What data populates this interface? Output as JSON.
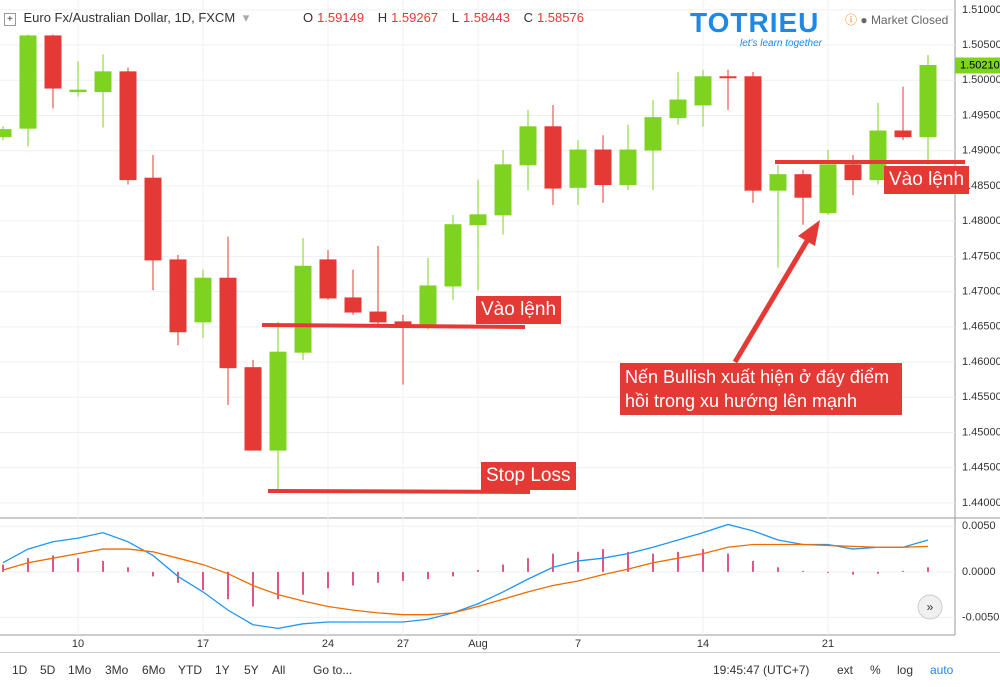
{
  "header": {
    "symbol": "Euro Fx/Australian Dollar, 1D, FXCM",
    "ohlc": [
      {
        "key": "O",
        "value": "1.59149"
      },
      {
        "key": "H",
        "value": "1.59267"
      },
      {
        "key": "L",
        "value": "1.58443"
      },
      {
        "key": "C",
        "value": "1.58576"
      }
    ],
    "status": "Market Closed"
  },
  "logo": {
    "name": "TOTRIEU",
    "tagline": "let's learn together"
  },
  "annotations": {
    "entry_1": "Vào lệnh",
    "entry_2": "Vào lệnh",
    "stop_loss": "Stop Loss",
    "note": "Nến Bullish xuất hiện ở đáy điểm hồi trong xu hướng lên mạnh"
  },
  "toolbar": {
    "ranges": [
      "1D",
      "5D",
      "1Mo",
      "3Mo",
      "6Mo",
      "YTD",
      "1Y",
      "5Y",
      "All"
    ],
    "goto": "Go to...",
    "time": "19:45:47 (UTC+7)",
    "options": [
      "ext",
      "%",
      "log",
      "auto"
    ]
  },
  "chart_data": [
    {
      "type": "candlestick",
      "up_color": "#7ed321",
      "down_color": "#e53935",
      "grid": true,
      "categories": [
        null,
        null,
        null,
        "10",
        null,
        null,
        null,
        null,
        "17",
        null,
        null,
        null,
        null,
        "24",
        null,
        null,
        "27",
        null,
        null,
        "Aug",
        null,
        null,
        null,
        "7",
        null,
        null,
        null,
        null,
        "14",
        null,
        null,
        null,
        null,
        "21",
        null,
        null,
        null,
        null
      ],
      "open": [
        1.492,
        1.4932,
        1.5063,
        1.4984,
        1.4984,
        1.5012,
        1.4861,
        1.4745,
        1.4657,
        1.4719,
        1.4592,
        1.4475,
        1.4614,
        1.4745,
        1.4691,
        1.4671,
        1.4657,
        1.4653,
        1.4708,
        1.4795,
        1.4809,
        1.488,
        1.4934,
        1.4848,
        1.4901,
        1.4852,
        1.4901,
        1.4947,
        1.4965,
        1.5005,
        1.5005,
        1.4844,
        1.4866,
        1.4812,
        1.488,
        1.4859,
        1.4928,
        1.492
      ],
      "high": [
        1.4935,
        1.5065,
        1.5065,
        1.5027,
        1.5037,
        1.5018,
        1.4894,
        1.4752,
        1.4731,
        1.4778,
        1.4603,
        1.4657,
        1.4776,
        1.4759,
        1.4731,
        1.4765,
        1.4667,
        1.4748,
        1.4809,
        1.4859,
        1.4901,
        1.4958,
        1.4965,
        1.4915,
        1.4922,
        1.4937,
        1.4972,
        1.5012,
        1.5015,
        1.5015,
        1.5012,
        1.488,
        1.4873,
        1.4901,
        1.4894,
        1.4968,
        1.4991,
        1.5036
      ],
      "low": [
        1.4915,
        1.4906,
        1.496,
        1.4977,
        1.4933,
        1.4852,
        1.4702,
        1.4624,
        1.4634,
        1.4539,
        1.4475,
        1.4418,
        1.4603,
        1.4688,
        1.4667,
        1.4653,
        1.4568,
        1.4646,
        1.4688,
        1.4702,
        1.4781,
        1.4844,
        1.4823,
        1.4823,
        1.4826,
        1.4844,
        1.4844,
        1.4937,
        1.4934,
        1.4958,
        1.4826,
        1.4734,
        1.4795,
        1.4809,
        1.4837,
        1.4852,
        1.4915,
        1.488
      ],
      "close": [
        1.493,
        1.5063,
        1.4989,
        1.4986,
        1.5012,
        1.4859,
        1.4745,
        1.4643,
        1.4719,
        1.4592,
        1.4475,
        1.4614,
        1.4736,
        1.4691,
        1.4671,
        1.4657,
        1.4653,
        1.4708,
        1.4795,
        1.4809,
        1.488,
        1.4934,
        1.4847,
        1.4901,
        1.4852,
        1.4901,
        1.4947,
        1.4972,
        1.5005,
        1.5004,
        1.4844,
        1.4866,
        1.4834,
        1.488,
        1.4859,
        1.4928,
        1.492,
        1.5021
      ],
      "last_price": {
        "value": 1.5021,
        "label": "1.50210"
      },
      "ylim": [
        1.438,
        1.5114
      ],
      "yticks": [
        {
          "value": 1.44,
          "label": "1.44000"
        },
        {
          "value": 1.445,
          "label": "1.44500"
        },
        {
          "value": 1.45,
          "label": "1.45000"
        },
        {
          "value": 1.455,
          "label": "1.45500"
        },
        {
          "value": 1.46,
          "label": "1.46000"
        },
        {
          "value": 1.465,
          "label": "1.46500"
        },
        {
          "value": 1.47,
          "label": "1.47000"
        },
        {
          "value": 1.475,
          "label": "1.47500"
        },
        {
          "value": 1.48,
          "label": "1.48000"
        },
        {
          "value": 1.485,
          "label": "1.48500"
        },
        {
          "value": 1.49,
          "label": "1.49000"
        },
        {
          "value": 1.495,
          "label": "1.49500"
        },
        {
          "value": 1.5,
          "label": "1.50000"
        },
        {
          "value": 1.505,
          "label": "1.50500"
        },
        {
          "value": 1.51,
          "label": "1.51000"
        }
      ]
    },
    {
      "type": "macd",
      "grid": true,
      "histogram": {
        "color": "#d81b60",
        "values": [
          0.0008,
          0.0015,
          0.0018,
          0.0015,
          0.0012,
          0.0005,
          -0.0005,
          -0.0012,
          -0.002,
          -0.003,
          -0.0038,
          -0.003,
          -0.0025,
          -0.0018,
          -0.0015,
          -0.0012,
          -0.001,
          -0.0008,
          -0.0005,
          0.0002,
          0.0008,
          0.0015,
          0.002,
          0.0022,
          0.0025,
          0.0022,
          0.002,
          0.0022,
          0.0025,
          0.002,
          0.0012,
          0.0005,
          0.0001,
          -0.0001,
          -0.0003,
          -0.0002,
          0.0001,
          0.0005
        ]
      },
      "series": [
        {
          "color": "#2196f3",
          "values": [
            0.001,
            0.0025,
            0.0033,
            0.0037,
            0.0043,
            0.0033,
            0.0018,
            -0.0005,
            -0.0022,
            -0.0042,
            -0.0058,
            -0.0062,
            -0.0057,
            -0.0055,
            -0.0055,
            -0.0055,
            -0.0055,
            -0.0052,
            -0.0045,
            -0.0035,
            -0.0022,
            -0.0008,
            0.0005,
            0.0012,
            0.0015,
            0.002,
            0.0027,
            0.0035,
            0.0043,
            0.0052,
            0.0045,
            0.0035,
            0.003,
            0.003,
            0.0025,
            0.0027,
            0.0027,
            0.0035
          ]
        },
        {
          "color": "#ef6c00",
          "values": [
            0.0002,
            0.001,
            0.0015,
            0.002,
            0.0025,
            0.0025,
            0.0022,
            0.0015,
            0.0008,
            -0.0002,
            -0.0015,
            -0.0025,
            -0.0032,
            -0.0038,
            -0.0042,
            -0.0045,
            -0.0047,
            -0.0047,
            -0.0045,
            -0.0038,
            -0.003,
            -0.0022,
            -0.0015,
            -0.001,
            -0.0003,
            0.0003,
            0.001,
            0.0015,
            0.002,
            0.0027,
            0.003,
            0.003,
            0.003,
            0.0029,
            0.0028,
            0.0027,
            0.0027,
            0.0028
          ]
        }
      ],
      "ylim": [
        -0.0066,
        0.0058
      ],
      "yticks": [
        {
          "value": 0.005,
          "label": "0.0050"
        },
        {
          "value": 0,
          "label": "0.0000"
        },
        {
          "value": -0.005,
          "label": "-0.0050"
        }
      ]
    }
  ]
}
